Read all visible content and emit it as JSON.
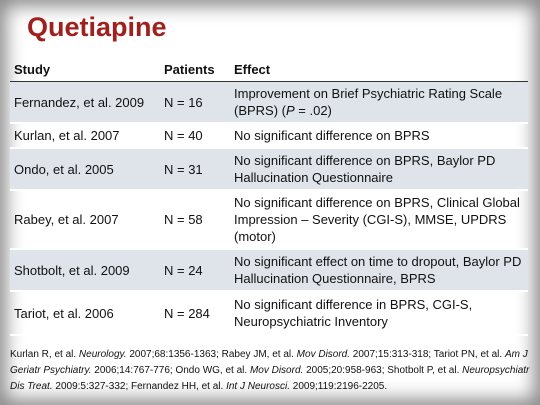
{
  "title": "Quetiapine",
  "table": {
    "header": [
      "Study",
      "Patients",
      "Effect"
    ],
    "rows": [
      {
        "study": "Fernandez, et al. 2009",
        "patients": "N = 16",
        "effect": [
          "Improvement on Brief Psychiatric Rating Scale (BPRS) (",
          "P",
          " = .02)"
        ]
      },
      {
        "study": "Kurlan, et al. 2007",
        "patients": "N = 40",
        "effect": [
          "No significant difference on BPRS"
        ]
      },
      {
        "study": "Ondo, et al. 2005",
        "patients": "N = 31",
        "effect": [
          "No significant difference on BPRS, Baylor PD Hallucination Questionnaire"
        ]
      },
      {
        "study": "Rabey, et al. 2007",
        "patients": "N = 58",
        "effect": [
          "No significant difference on BPRS, Clinical Global Impression – Severity (CGI-S), MMSE, UPDRS (motor)"
        ]
      },
      {
        "study": "Shotbolt, et al. 2009",
        "patients": "N = 24",
        "effect": [
          "No significant effect on time to dropout, Baylor PD Hallucination Questionnaire, BPRS"
        ]
      },
      {
        "study": "Tariot, et al. 2006",
        "patients": "N = 284",
        "effect": [
          "No significant difference in BPRS, CGI-S, Neuropsychiatric Inventory"
        ]
      }
    ]
  },
  "references": [
    "Kurlan R, et al. ",
    "Neurology.",
    " 2007;68:1356-1363; Rabey JM, et al. ",
    "Mov Disord.",
    " 2007;15:313-318; Tariot PN, et al. ",
    "Am J Geriatr Psychiatry.",
    " 2006;14:767-776; Ondo WG, et al. ",
    "Mov Disord.",
    " 2005;20:958-963; Shotbolt P, et al. ",
    "Neuropsychiatr Dis Treat.",
    " 2009:5:327-332; Fernandez HH, et al. ",
    "Int J Neurosci.",
    " 2009;119:2196-2205."
  ]
}
